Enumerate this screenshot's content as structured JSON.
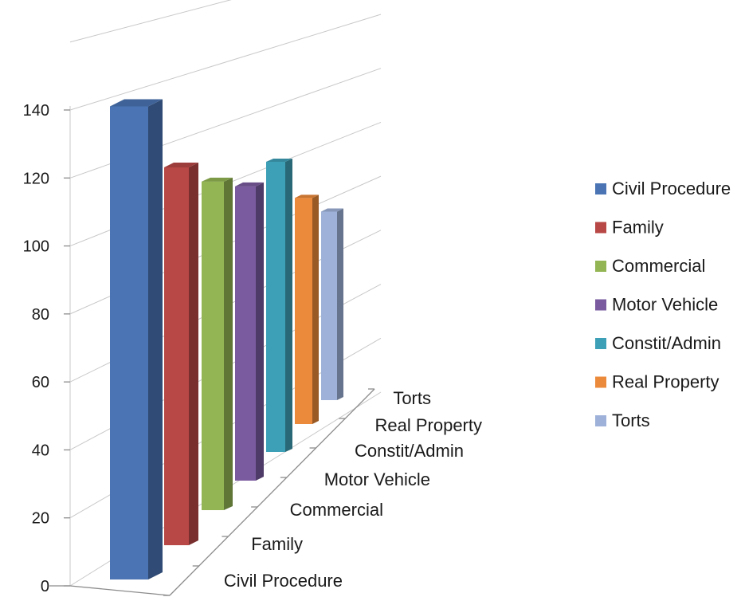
{
  "chart_data": {
    "type": "bar",
    "categories": [
      "Civil Procedure",
      "Family",
      "Commercial",
      "Motor Vehicle",
      "Constit/Admin",
      "Real Property",
      "Torts"
    ],
    "values": [
      139,
      120,
      112,
      107,
      112,
      93,
      83
    ],
    "colors": [
      "#4a74b4",
      "#b84846",
      "#93b554",
      "#7a5b9f",
      "#3ea0b7",
      "#ec8a3b",
      "#9eb2d9"
    ],
    "y_ticks": [
      "0",
      "20",
      "40",
      "60",
      "80",
      "100",
      "120",
      "140"
    ],
    "ylim": [
      0,
      140
    ],
    "title": "",
    "xlabel": "",
    "ylabel": "",
    "grid": true,
    "legend": {
      "position": "right",
      "entries": [
        "Civil Procedure",
        "Family",
        "Commercial",
        "Motor Vehicle",
        "Constit/Admin",
        "Real Property",
        "Torts"
      ]
    },
    "style": "3d-column"
  }
}
